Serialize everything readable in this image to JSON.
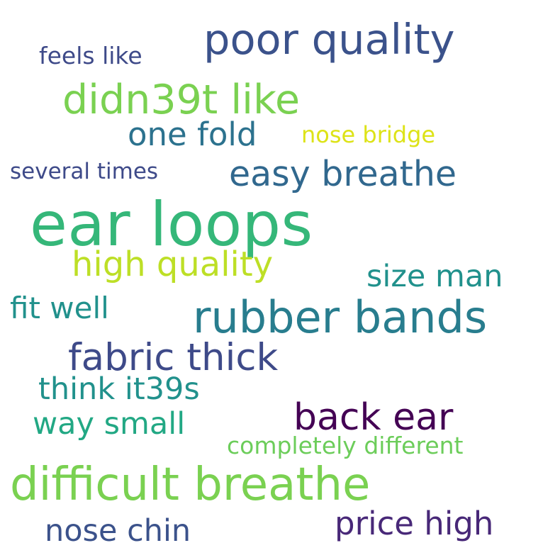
{
  "words": [
    {
      "text": "ear loops",
      "color": "#35b779"
    },
    {
      "text": "difficult breathe",
      "color": "#7ad151"
    },
    {
      "text": "rubber bands",
      "color": "#287d8e"
    },
    {
      "text": "poor quality",
      "color": "#3b528b"
    },
    {
      "text": "didn39t like",
      "color": "#7ad151"
    },
    {
      "text": "fabric thick",
      "color": "#3e4a89"
    },
    {
      "text": "easy breathe",
      "color": "#31688e"
    },
    {
      "text": "high quality",
      "color": "#bddf26"
    },
    {
      "text": "back ear",
      "color": "#440154"
    },
    {
      "text": "price high",
      "color": "#482878"
    },
    {
      "text": "one fold",
      "color": "#2c728e"
    },
    {
      "text": "size man",
      "color": "#21918c"
    },
    {
      "text": "think it39s",
      "color": "#21918c"
    },
    {
      "text": "nose chin",
      "color": "#3b528b"
    },
    {
      "text": "fit well",
      "color": "#21918c"
    },
    {
      "text": "way small",
      "color": "#22a884"
    },
    {
      "text": "feels like",
      "color": "#3e4a89"
    },
    {
      "text": "several times",
      "color": "#3e4a89"
    },
    {
      "text": "nose bridge",
      "color": "#dde318"
    },
    {
      "text": "completely different",
      "color": "#6ccd5a"
    }
  ]
}
